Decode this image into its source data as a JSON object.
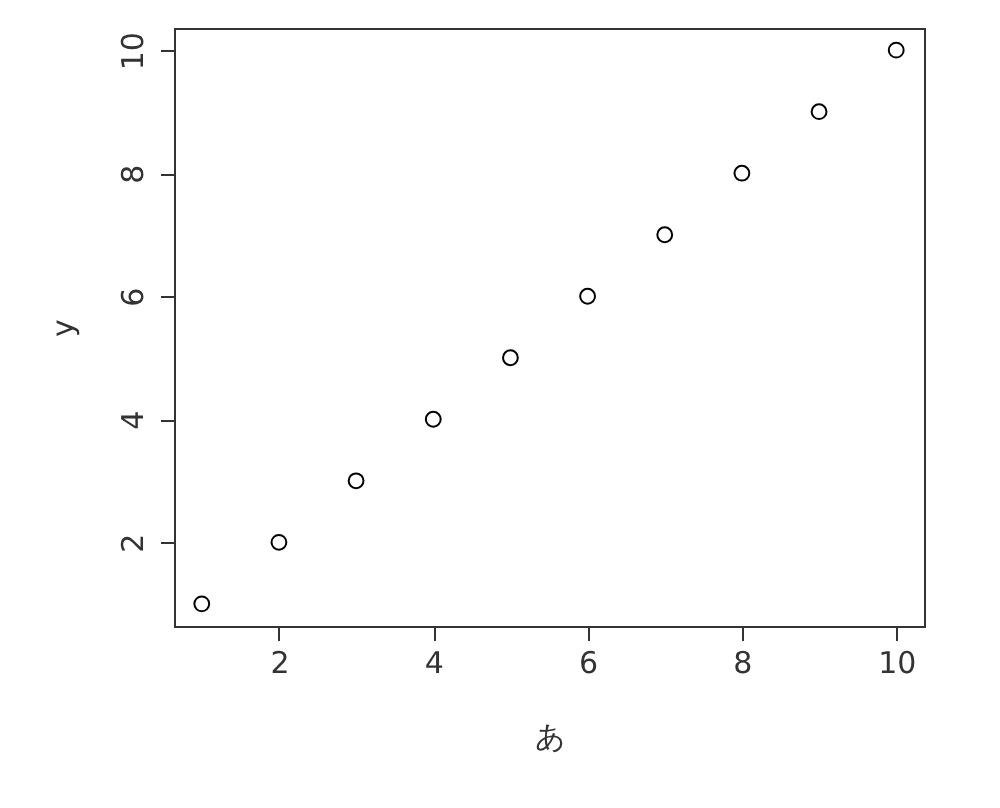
{
  "chart_data": {
    "type": "scatter",
    "x": [
      1,
      2,
      3,
      4,
      5,
      6,
      7,
      8,
      9,
      10
    ],
    "values": [
      1,
      2,
      3,
      4,
      5,
      6,
      7,
      8,
      9,
      10
    ],
    "xlabel": "あ",
    "ylabel": "y",
    "xlim": [
      0.64,
      10.36
    ],
    "ylim": [
      0.64,
      10.36
    ],
    "xticks": [
      2,
      4,
      6,
      8,
      10
    ],
    "yticks": [
      2,
      4,
      6,
      8,
      10
    ],
    "grid": false,
    "marker": "circle"
  }
}
